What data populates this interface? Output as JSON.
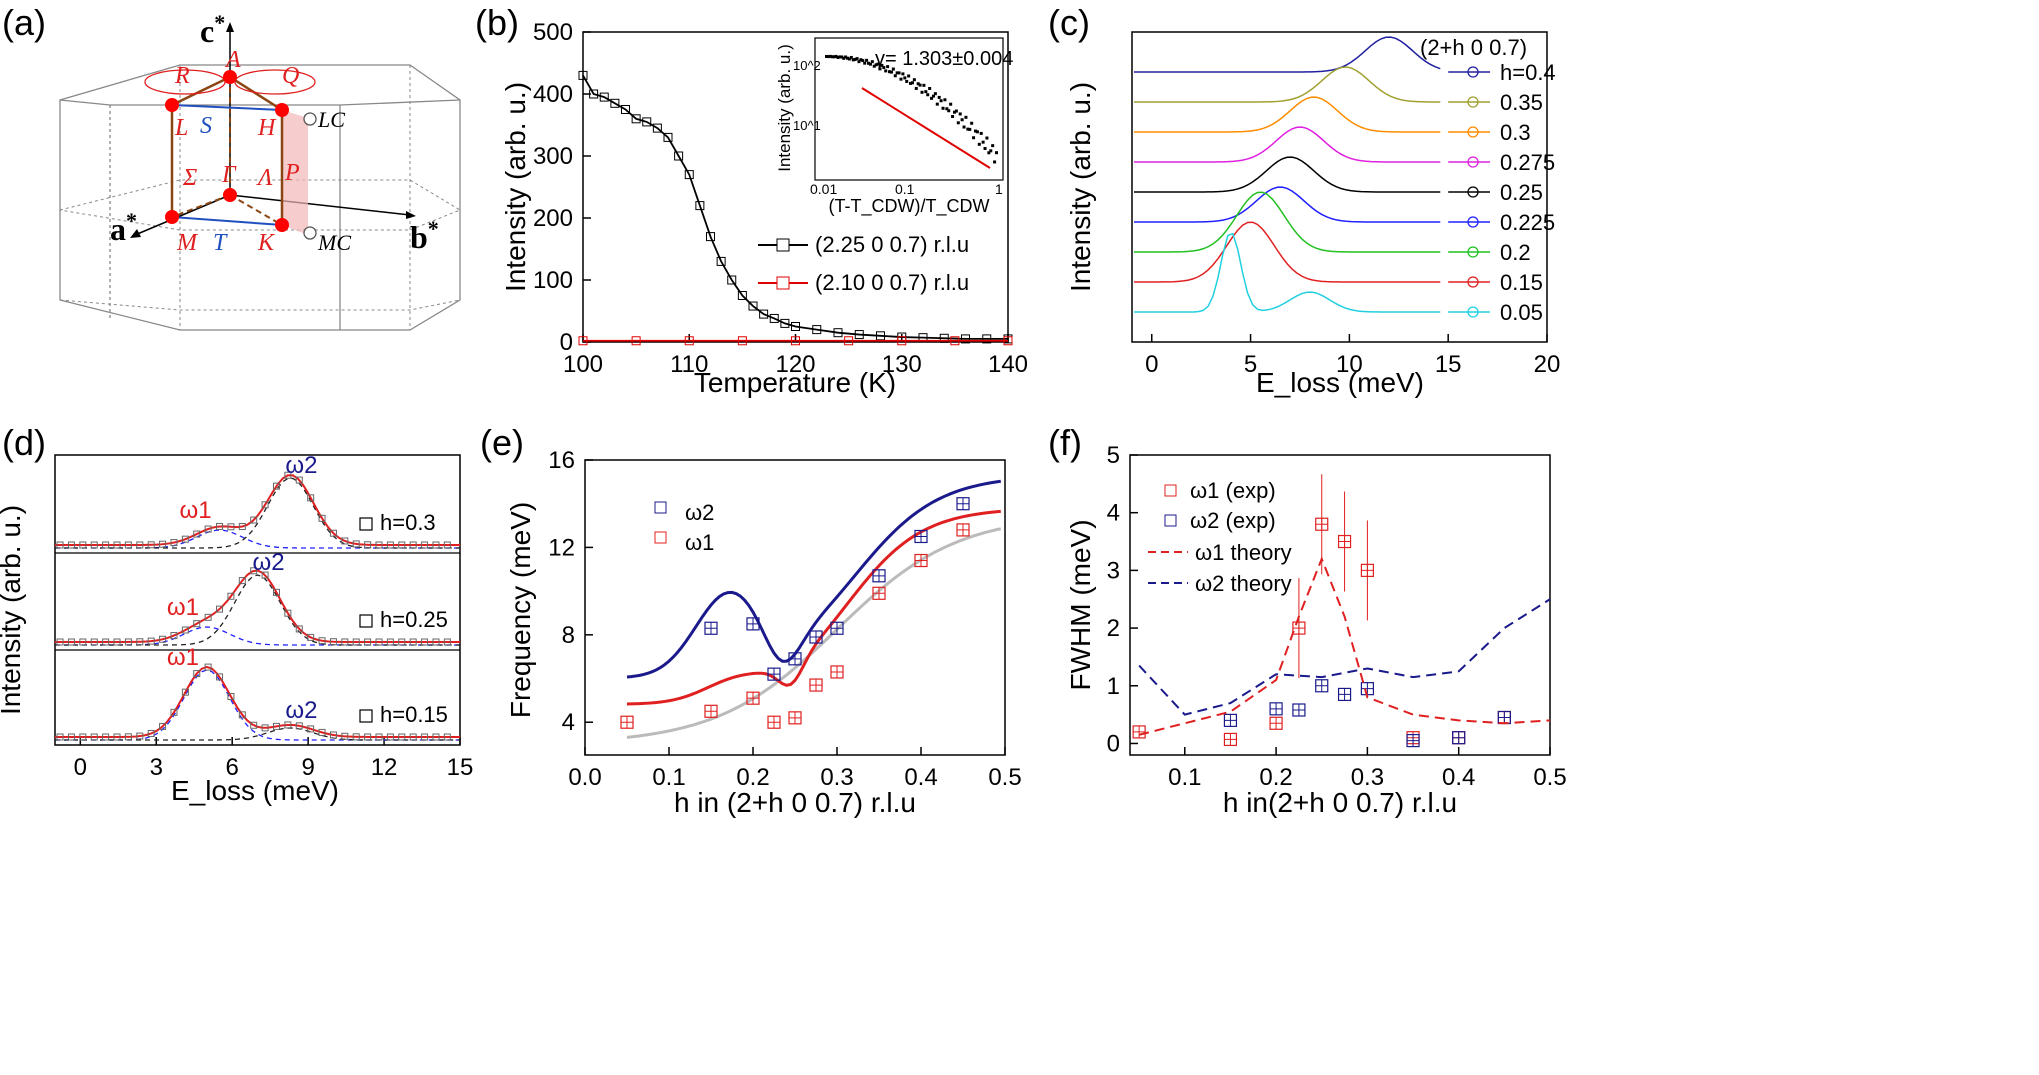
{
  "panels": {
    "a": {
      "label": "(a)",
      "axes": {
        "c": "c",
        "a": "a",
        "b": "b",
        "star": "*"
      },
      "points": {
        "A": "A",
        "L": "L",
        "H": "H",
        "M": "M",
        "K": "K",
        "Gamma": "Γ",
        "Sigma": "Σ",
        "Lambda": "Λ"
      },
      "lines": {
        "R": "R",
        "Q": "Q",
        "S": "S",
        "T": "T",
        "P": "P"
      },
      "corners": {
        "LC": "LC",
        "MC": "MC"
      }
    },
    "b": {
      "label": "(b)",
      "chart_data": {
        "type": "line",
        "xlabel": "Temperature (K)",
        "ylabel": "Intensity (arb. u.)",
        "xlim": [
          100,
          140
        ],
        "ylim": [
          0,
          500
        ],
        "xticks": [
          100,
          110,
          120,
          130,
          140
        ],
        "yticks": [
          0,
          100,
          200,
          300,
          400,
          500
        ],
        "series": [
          {
            "name": "(2.25 0 0.7) r.l.u",
            "color": "#000000",
            "x": [
              100,
              101,
              102,
              103,
              104,
              105,
              106,
              107,
              108,
              109,
              110,
              111,
              112,
              113,
              114,
              115,
              116,
              117,
              118,
              119,
              120,
              122,
              124,
              126,
              128,
              130,
              132,
              134,
              136,
              138,
              140
            ],
            "values": [
              430,
              400,
              395,
              385,
              375,
              360,
              355,
              345,
              330,
              300,
              270,
              220,
              170,
              130,
              100,
              75,
              58,
              45,
              38,
              30,
              25,
              20,
              15,
              12,
              10,
              8,
              7,
              6,
              5,
              5,
              5
            ]
          },
          {
            "name": "(2.10 0 0.7) r.l.u",
            "color": "#e00000",
            "x": [
              100,
              105,
              110,
              115,
              120,
              125,
              130,
              135,
              140
            ],
            "values": [
              2,
              2,
              2,
              2,
              2,
              2,
              2,
              2,
              2
            ]
          }
        ],
        "inset": {
          "xlabel": "(T-T_CDW)/T_CDW",
          "ylabel": "Intensity (arb. u.)",
          "xticks": [
            "0.01",
            "0.1",
            "1"
          ],
          "yticks": [
            "10^1",
            "10^2"
          ],
          "annotation": "γ= 1.303±0.004"
        }
      }
    },
    "c": {
      "label": "(c)",
      "header": "(2+h 0 0.7)",
      "chart_data": {
        "type": "line",
        "xlabel": "E_loss (meV)",
        "ylabel": "Intensity (arb. u.)",
        "xlim": [
          -1,
          20
        ],
        "xticks": [
          0,
          5,
          10,
          15,
          20
        ],
        "series": [
          {
            "name": "h=0.4",
            "color": "#2020a0",
            "peak": 12.0
          },
          {
            "name": "0.35",
            "color": "#a0a030",
            "peak": 9.8
          },
          {
            "name": "0.3",
            "color": "#ff8c00",
            "peak": 8.2
          },
          {
            "name": "0.275",
            "color": "#e020e0",
            "peak": 7.5
          },
          {
            "name": "0.25",
            "color": "#000000",
            "peak": 7.0
          },
          {
            "name": "0.225",
            "color": "#2020ff",
            "peak": 6.5
          },
          {
            "name": "0.2",
            "color": "#20c020",
            "peak": 5.5
          },
          {
            "name": "0.15",
            "color": "#e02020",
            "peak": 5.0
          },
          {
            "name": "0.05",
            "color": "#20d0e0",
            "peak": 4.0
          }
        ]
      }
    },
    "d": {
      "label": "(d)",
      "chart_data": {
        "type": "line",
        "xlabel": "E_loss (meV)",
        "ylabel": "Intensity (arb. u.)",
        "xlim": [
          -1,
          15
        ],
        "xticks": [
          0,
          3,
          6,
          9,
          12,
          15
        ],
        "series": [
          {
            "name": "h=0.3",
            "w1": 5.5,
            "w2": 8.3
          },
          {
            "name": "h=0.25",
            "w1": 5.0,
            "w2": 7.0
          },
          {
            "name": "h=0.15",
            "w1": 5.0,
            "w2": 8.3
          }
        ],
        "labels": {
          "w1": "ω1",
          "w2": "ω2"
        }
      }
    },
    "e": {
      "label": "(e)",
      "chart_data": {
        "type": "scatter",
        "xlabel": "h in (2+h 0 0.7) r.l.u",
        "ylabel": "Frequency (meV)",
        "xlim": [
          0,
          0.5
        ],
        "ylim": [
          2.5,
          16
        ],
        "xticks": [
          0.0,
          0.1,
          0.2,
          0.3,
          0.4,
          0.5
        ],
        "yticks": [
          4,
          8,
          12,
          16
        ],
        "series": [
          {
            "name": "ω2",
            "color": "#1a1a8c",
            "x": [
              0.15,
              0.2,
              0.225,
              0.25,
              0.275,
              0.3,
              0.35,
              0.4,
              0.45
            ],
            "values": [
              8.3,
              8.5,
              6.2,
              6.9,
              7.9,
              8.3,
              10.7,
              12.5,
              14.0
            ]
          },
          {
            "name": "ω1",
            "color": "#e02020",
            "x": [
              0.05,
              0.15,
              0.2,
              0.225,
              0.25,
              0.275,
              0.3,
              0.35,
              0.4,
              0.45
            ],
            "values": [
              4.0,
              4.5,
              5.1,
              4.0,
              4.2,
              5.7,
              6.3,
              9.9,
              11.4,
              12.8
            ]
          }
        ],
        "legend": {
          "w2": "ω2",
          "w1": "ω1"
        }
      }
    },
    "f": {
      "label": "(f)",
      "chart_data": {
        "type": "scatter",
        "xlabel": "h in(2+h 0 0.7) r.l.u",
        "ylabel": "FWHM (meV)",
        "xlim": [
          0.04,
          0.5
        ],
        "ylim": [
          -0.2,
          5
        ],
        "xticks": [
          0.1,
          0.2,
          0.3,
          0.4,
          0.5
        ],
        "yticks": [
          0,
          1,
          2,
          3,
          4,
          5
        ],
        "series": [
          {
            "name": "ω1 (exp)",
            "color": "#e02020",
            "x": [
              0.05,
              0.15,
              0.2,
              0.225,
              0.25,
              0.275,
              0.3,
              0.35,
              0.4,
              0.45
            ],
            "values": [
              0.2,
              0.07,
              0.35,
              2.0,
              3.8,
              3.5,
              3.0,
              0.1,
              0.1,
              0.45
            ]
          },
          {
            "name": "ω2 (exp)",
            "color": "#1a1a8c",
            "x": [
              0.15,
              0.2,
              0.225,
              0.25,
              0.275,
              0.3,
              0.35,
              0.4,
              0.45
            ],
            "values": [
              0.4,
              0.6,
              0.58,
              1.0,
              0.85,
              0.95,
              0.05,
              0.1,
              0.45
            ]
          },
          {
            "name": "ω1 theory",
            "color": "#e02020",
            "dashed": true,
            "x": [
              0.05,
              0.1,
              0.15,
              0.2,
              0.225,
              0.25,
              0.275,
              0.3,
              0.35,
              0.4,
              0.45,
              0.5
            ],
            "values": [
              0.15,
              0.35,
              0.55,
              1.1,
              2.2,
              3.2,
              2.2,
              0.8,
              0.5,
              0.4,
              0.35,
              0.4
            ]
          },
          {
            "name": "ω2 theory",
            "color": "#1a1a8c",
            "dashed": true,
            "x": [
              0.05,
              0.1,
              0.15,
              0.2,
              0.25,
              0.3,
              0.35,
              0.4,
              0.45,
              0.5
            ],
            "values": [
              1.35,
              0.5,
              0.7,
              1.2,
              1.15,
              1.3,
              1.15,
              1.25,
              2.0,
              2.5
            ]
          }
        ],
        "legend": {
          "w1exp": "ω1 (exp)",
          "w2exp": "ω2 (exp)",
          "w1th": "ω1 theory",
          "w2th": "ω2 theory"
        }
      }
    }
  }
}
